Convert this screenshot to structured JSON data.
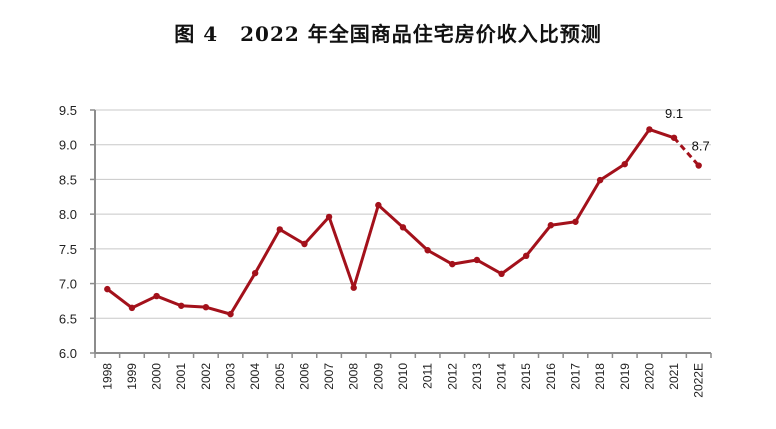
{
  "title": {
    "figure_no": "图 4",
    "text": "2022 年全国商品住宅房价收入比预测"
  },
  "colors": {
    "line": "#a3111b",
    "grid": "#c8c8c8",
    "axis": "#8c8c8c"
  },
  "chart_data": {
    "type": "line",
    "title": "图 4 2022 年全国商品住宅房价收入比预测",
    "xlabel": "",
    "ylabel": "",
    "ylim": [
      6.0,
      9.5
    ],
    "yticks": [
      "6.0",
      "6.5",
      "7.0",
      "7.5",
      "8.0",
      "8.5",
      "9.0",
      "9.5"
    ],
    "grid": "horizontal",
    "legend": "none",
    "categories": [
      "1998",
      "1999",
      "2000",
      "2001",
      "2002",
      "2003",
      "2004",
      "2005",
      "2006",
      "2007",
      "2008",
      "2009",
      "2010",
      "2011",
      "2012",
      "2013",
      "2014",
      "2015",
      "2016",
      "2017",
      "2018",
      "2019",
      "2020",
      "2021",
      "2022E"
    ],
    "series": [
      {
        "name": "房价收入比",
        "values": [
          6.92,
          6.65,
          6.82,
          6.68,
          6.66,
          6.56,
          7.15,
          7.78,
          7.57,
          7.96,
          6.94,
          8.13,
          7.81,
          7.48,
          7.28,
          7.34,
          7.14,
          7.4,
          7.84,
          7.89,
          8.49,
          8.72,
          9.22,
          9.1,
          8.7
        ],
        "style_note": "solid through 2021, dashed 2021→2022E (forecast)"
      }
    ],
    "annotations": [
      {
        "category": "2021",
        "label": "9.1"
      },
      {
        "category": "2022E",
        "label": "8.7"
      }
    ]
  }
}
